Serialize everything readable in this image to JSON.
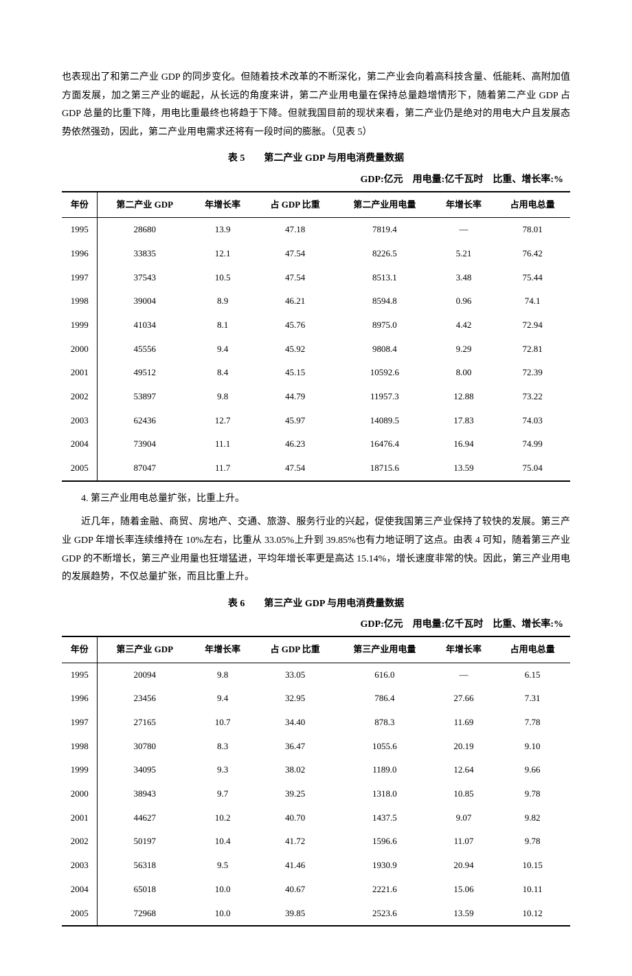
{
  "intro": "也表现出了和第二产业 GDP 的同步变化。但随着技术改革的不断深化，第二产业会向着高科技含量、低能耗、高附加值方面发展，加之第三产业的崛起，从长远的角度来讲，第二产业用电量在保持总量趋增情形下，随着第二产业 GDP 占 GDP 总量的比重下降，用电比重最终也将趋于下降。但就我国目前的现状来看，第二产业仍是绝对的用电大户且发展态势依然强劲，因此，第二产业用电需求还将有一段时间的膨胀。（见表 5）",
  "table5": {
    "title": "表 5　　第二产业 GDP 与用电消费量数据",
    "units": "GDP:亿元　用电量:亿千瓦时　比重、增长率:%",
    "headers": [
      "年份",
      "第二产业 GDP",
      "年增长率",
      "占 GDP 比重",
      "第二产业用电量",
      "年增长率",
      "占用电总量"
    ],
    "rows": [
      [
        "1995",
        "28680",
        "13.9",
        "47.18",
        "7819.4",
        "—",
        "78.01"
      ],
      [
        "1996",
        "33835",
        "12.1",
        "47.54",
        "8226.5",
        "5.21",
        "76.42"
      ],
      [
        "1997",
        "37543",
        "10.5",
        "47.54",
        "8513.1",
        "3.48",
        "75.44"
      ],
      [
        "1998",
        "39004",
        "8.9",
        "46.21",
        "8594.8",
        "0.96",
        "74.1"
      ],
      [
        "1999",
        "41034",
        "8.1",
        "45.76",
        "8975.0",
        "4.42",
        "72.94"
      ],
      [
        "2000",
        "45556",
        "9.4",
        "45.92",
        "9808.4",
        "9.29",
        "72.81"
      ],
      [
        "2001",
        "49512",
        "8.4",
        "45.15",
        "10592.6",
        "8.00",
        "72.39"
      ],
      [
        "2002",
        "53897",
        "9.8",
        "44.79",
        "11957.3",
        "12.88",
        "73.22"
      ],
      [
        "2003",
        "62436",
        "12.7",
        "45.97",
        "14089.5",
        "17.83",
        "74.03"
      ],
      [
        "2004",
        "73904",
        "11.1",
        "46.23",
        "16476.4",
        "16.94",
        "74.99"
      ],
      [
        "2005",
        "87047",
        "11.7",
        "47.54",
        "18715.6",
        "13.59",
        "75.04"
      ]
    ]
  },
  "point4": "4. 第三产业用电总量扩张，比重上升。",
  "para2": "近几年，随着金融、商贸、房地产、交通、旅游、服务行业的兴起，促使我国第三产业保持了较快的发展。第三产业 GDP 年增长率连续维持在 10%左右，比重从 33.05%上升到 39.85%也有力地证明了这点。由表 4 可知，随着第三产业 GDP 的不断增长，第三产业用量也狂增猛进，平均年增长率更是高达 15.14%，增长速度非常的快。因此，第三产业用电的发展趋势，不仅总量扩张，而且比重上升。",
  "table6": {
    "title": "表 6　　第三产业 GDP 与用电消费量数据",
    "units": "GDP:亿元　用电量:亿千瓦时　比重、增长率:%",
    "headers": [
      "年份",
      "第三产业 GDP",
      "年增长率",
      "占 GDP 比重",
      "第三产业用电量",
      "年增长率",
      "占用电总量"
    ],
    "rows": [
      [
        "1995",
        "20094",
        "9.8",
        "33.05",
        "616.0",
        "—",
        "6.15"
      ],
      [
        "1996",
        "23456",
        "9.4",
        "32.95",
        "786.4",
        "27.66",
        "7.31"
      ],
      [
        "1997",
        "27165",
        "10.7",
        "34.40",
        "878.3",
        "11.69",
        "7.78"
      ],
      [
        "1998",
        "30780",
        "8.3",
        "36.47",
        "1055.6",
        "20.19",
        "9.10"
      ],
      [
        "1999",
        "34095",
        "9.3",
        "38.02",
        "1189.0",
        "12.64",
        "9.66"
      ],
      [
        "2000",
        "38943",
        "9.7",
        "39.25",
        "1318.0",
        "10.85",
        "9.78"
      ],
      [
        "2001",
        "44627",
        "10.2",
        "40.70",
        "1437.5",
        "9.07",
        "9.82"
      ],
      [
        "2002",
        "50197",
        "10.4",
        "41.72",
        "1596.6",
        "11.07",
        "9.78"
      ],
      [
        "2003",
        "56318",
        "9.5",
        "41.46",
        "1930.9",
        "20.94",
        "10.15"
      ],
      [
        "2004",
        "65018",
        "10.0",
        "40.67",
        "2221.6",
        "15.06",
        "10.11"
      ],
      [
        "2005",
        "72968",
        "10.0",
        "39.85",
        "2523.6",
        "13.59",
        "10.12"
      ]
    ]
  }
}
